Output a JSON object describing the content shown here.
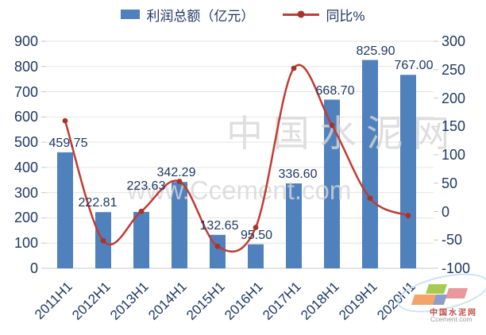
{
  "chart_data": {
    "type": "bar",
    "combo": "bar+line",
    "title": "",
    "categories": [
      "2011H1",
      "2012H1",
      "2013H1",
      "2014H1",
      "2015H1",
      "2016H1",
      "2017H1",
      "2018H1",
      "2019H1",
      "2020H1"
    ],
    "series": [
      {
        "name": "利润总额（亿元）",
        "chart_type": "bar",
        "axis": "left",
        "color": "#4f81bd",
        "values": [
          459.75,
          222.81,
          223.63,
          342.29,
          132.65,
          95.5,
          336.6,
          668.7,
          825.9,
          767.0
        ],
        "data_labels": [
          "459.75",
          "222.81",
          "223.63",
          "342.29",
          "132.65",
          "95.50",
          "336.60",
          "668.70",
          "825.90",
          "767.00"
        ]
      },
      {
        "name": "同比%",
        "chart_type": "line",
        "axis": "right",
        "color": "#c13b33",
        "marker_color": "#a93328",
        "smooth": true,
        "values": [
          160,
          -51.5,
          0.4,
          53.1,
          -61.3,
          -28,
          252.5,
          152,
          23.5,
          -7.1
        ],
        "values_note": "estimated from line position against right axis"
      }
    ],
    "left_axis": {
      "min": 0,
      "max": 900,
      "step": 100,
      "tick_labels": [
        "900",
        "800",
        "700",
        "600",
        "500",
        "400",
        "300",
        "200",
        "100",
        "0"
      ]
    },
    "right_axis": {
      "min": -100,
      "max": 300,
      "step": 50,
      "tick_labels": [
        "300",
        "250",
        "200",
        "150",
        "100",
        "50",
        "0",
        "-50",
        "-100"
      ]
    },
    "gridlines": "horizontal",
    "legend_position": "top"
  },
  "watermark": {
    "line1": "中 国 水 泥 网",
    "line2": "www.Ccement.com"
  },
  "logo": {
    "name": "中国水泥网",
    "domain": "Ccement.com"
  },
  "colors": {
    "bar": "#4f81bd",
    "line": "#c13b33",
    "marker": "#a93328",
    "text": "#1f3864",
    "grid": "#e4e4e4",
    "axis_line": "#c9c9c9",
    "watermark": "#d7d7d7",
    "logo_green": "#a8ca53",
    "logo_orange": "#f2a567",
    "logo_violet": "#8e9dc9",
    "logo_pink": "#e9999c",
    "logo_swoosh": "#cde3f0",
    "logo_name": "#c0504d",
    "logo_domain": "#9a9a9a"
  }
}
